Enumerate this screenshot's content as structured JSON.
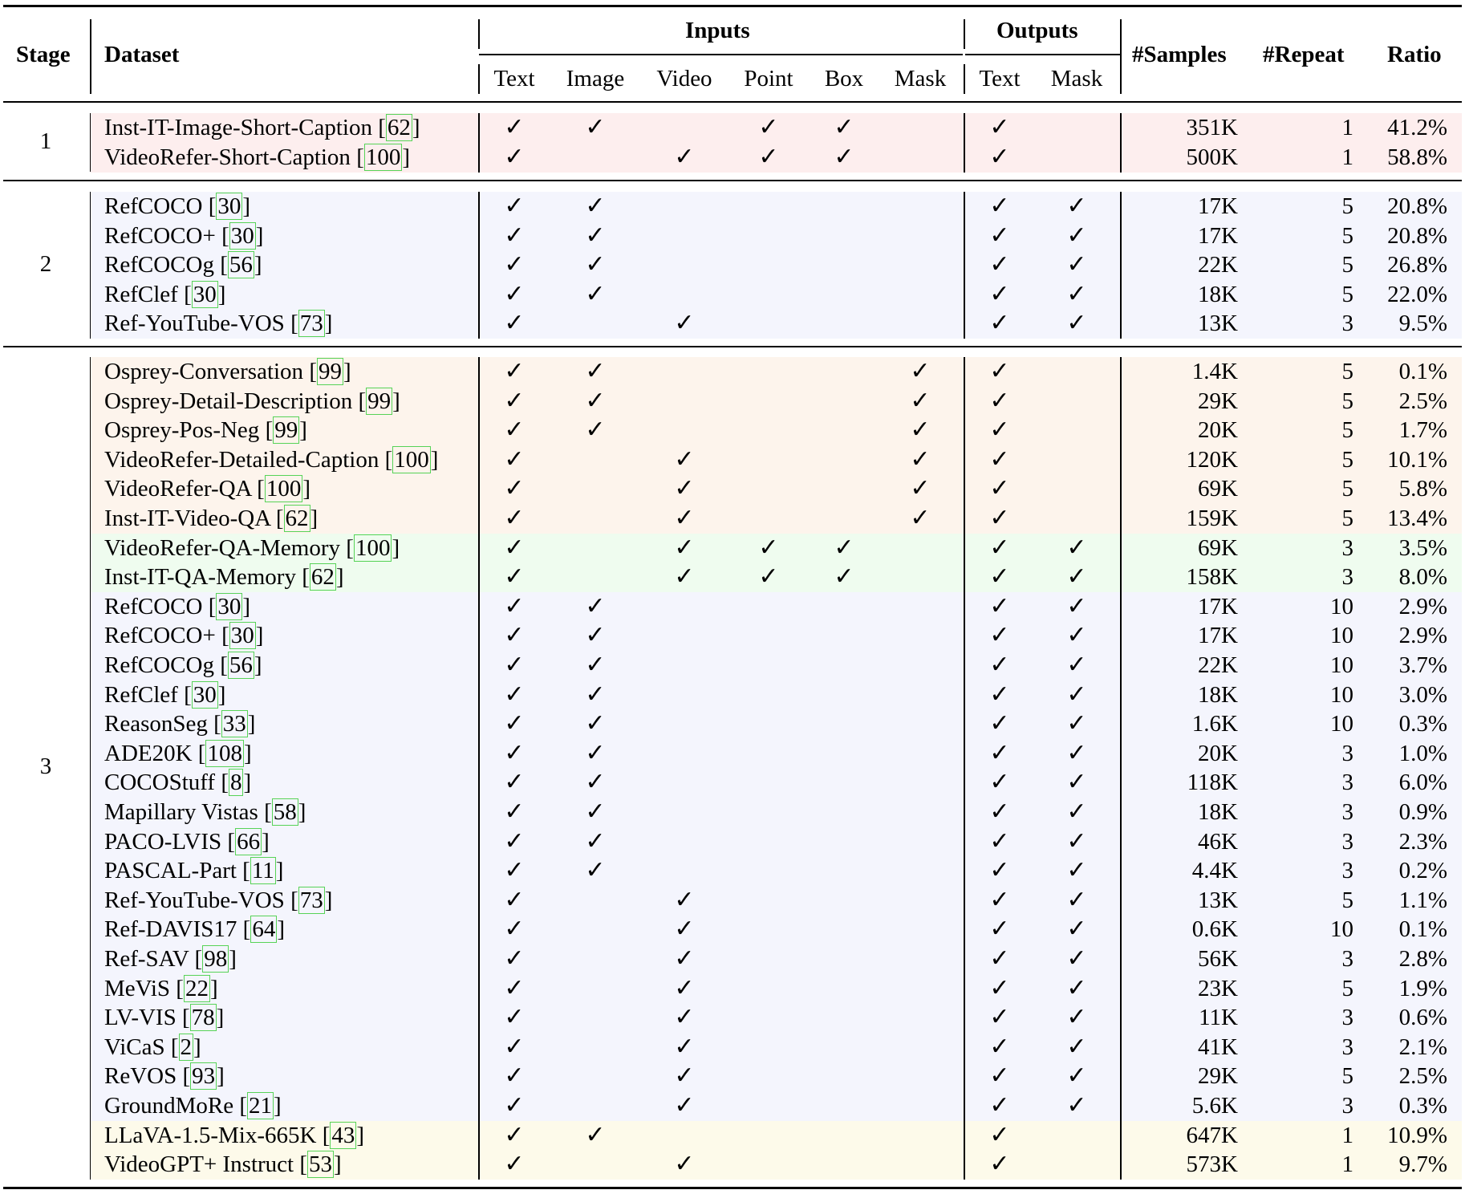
{
  "headers": {
    "stage": "Stage",
    "dataset": "Dataset",
    "inputs": "Inputs",
    "outputs": "Outputs",
    "samples": "#Samples",
    "repeat": "#Repeat",
    "ratio": "Ratio",
    "input_cols": [
      "Text",
      "Image",
      "Video",
      "Point",
      "Box",
      "Mask"
    ],
    "output_cols": [
      "Text",
      "Mask"
    ]
  },
  "check_symbol": "✓",
  "band_colors": {
    "red": "#fdeeee",
    "blue": "#f4f5fd",
    "orange": "#fdf4ec",
    "green": "#effcef",
    "yellow": "#fdfaea"
  },
  "stages": [
    {
      "label": "1",
      "rows": [
        {
          "name": "Inst-IT-Image-Short-Caption",
          "cite": "62",
          "in": [
            1,
            1,
            0,
            1,
            1,
            0
          ],
          "out": [
            1,
            0
          ],
          "samples": "351K",
          "repeat": "1",
          "ratio": "41.2%",
          "band": "red"
        },
        {
          "name": "VideoRefer-Short-Caption",
          "cite": "100",
          "in": [
            1,
            0,
            1,
            1,
            1,
            0
          ],
          "out": [
            1,
            0
          ],
          "samples": "500K",
          "repeat": "1",
          "ratio": "58.8%",
          "band": "red"
        }
      ]
    },
    {
      "label": "2",
      "rows": [
        {
          "name": "RefCOCO",
          "cite": "30",
          "in": [
            1,
            1,
            0,
            0,
            0,
            0
          ],
          "out": [
            1,
            1
          ],
          "samples": "17K",
          "repeat": "5",
          "ratio": "20.8%",
          "band": "blue"
        },
        {
          "name": "RefCOCO+",
          "cite": "30",
          "in": [
            1,
            1,
            0,
            0,
            0,
            0
          ],
          "out": [
            1,
            1
          ],
          "samples": "17K",
          "repeat": "5",
          "ratio": "20.8%",
          "band": "blue"
        },
        {
          "name": "RefCOCOg",
          "cite": "56",
          "in": [
            1,
            1,
            0,
            0,
            0,
            0
          ],
          "out": [
            1,
            1
          ],
          "samples": "22K",
          "repeat": "5",
          "ratio": "26.8%",
          "band": "blue"
        },
        {
          "name": "RefClef",
          "cite": "30",
          "in": [
            1,
            1,
            0,
            0,
            0,
            0
          ],
          "out": [
            1,
            1
          ],
          "samples": "18K",
          "repeat": "5",
          "ratio": "22.0%",
          "band": "blue"
        },
        {
          "name": "Ref-YouTube-VOS",
          "cite": "73",
          "in": [
            1,
            0,
            1,
            0,
            0,
            0
          ],
          "out": [
            1,
            1
          ],
          "samples": "13K",
          "repeat": "3",
          "ratio": "9.5%",
          "band": "blue"
        }
      ]
    },
    {
      "label": "3",
      "rows": [
        {
          "name": "Osprey-Conversation",
          "cite": "99",
          "in": [
            1,
            1,
            0,
            0,
            0,
            1
          ],
          "out": [
            1,
            0
          ],
          "samples": "1.4K",
          "repeat": "5",
          "ratio": "0.1%",
          "band": "orange"
        },
        {
          "name": "Osprey-Detail-Description",
          "cite": "99",
          "in": [
            1,
            1,
            0,
            0,
            0,
            1
          ],
          "out": [
            1,
            0
          ],
          "samples": "29K",
          "repeat": "5",
          "ratio": "2.5%",
          "band": "orange"
        },
        {
          "name": "Osprey-Pos-Neg",
          "cite": "99",
          "in": [
            1,
            1,
            0,
            0,
            0,
            1
          ],
          "out": [
            1,
            0
          ],
          "samples": "20K",
          "repeat": "5",
          "ratio": "1.7%",
          "band": "orange"
        },
        {
          "name": "VideoRefer-Detailed-Caption",
          "cite": "100",
          "in": [
            1,
            0,
            1,
            0,
            0,
            1
          ],
          "out": [
            1,
            0
          ],
          "samples": "120K",
          "repeat": "5",
          "ratio": "10.1%",
          "band": "orange"
        },
        {
          "name": "VideoRefer-QA",
          "cite": "100",
          "in": [
            1,
            0,
            1,
            0,
            0,
            1
          ],
          "out": [
            1,
            0
          ],
          "samples": "69K",
          "repeat": "5",
          "ratio": "5.8%",
          "band": "orange"
        },
        {
          "name": "Inst-IT-Video-QA",
          "cite": "62",
          "in": [
            1,
            0,
            1,
            0,
            0,
            1
          ],
          "out": [
            1,
            0
          ],
          "samples": "159K",
          "repeat": "5",
          "ratio": "13.4%",
          "band": "orange"
        },
        {
          "name": "VideoRefer-QA-Memory",
          "cite": "100",
          "in": [
            1,
            0,
            1,
            1,
            1,
            0
          ],
          "out": [
            1,
            1
          ],
          "samples": "69K",
          "repeat": "3",
          "ratio": "3.5%",
          "band": "green"
        },
        {
          "name": "Inst-IT-QA-Memory",
          "cite": "62",
          "in": [
            1,
            0,
            1,
            1,
            1,
            0
          ],
          "out": [
            1,
            1
          ],
          "samples": "158K",
          "repeat": "3",
          "ratio": "8.0%",
          "band": "green"
        },
        {
          "name": "RefCOCO",
          "cite": "30",
          "in": [
            1,
            1,
            0,
            0,
            0,
            0
          ],
          "out": [
            1,
            1
          ],
          "samples": "17K",
          "repeat": "10",
          "ratio": "2.9%",
          "band": "blue"
        },
        {
          "name": "RefCOCO+",
          "cite": "30",
          "in": [
            1,
            1,
            0,
            0,
            0,
            0
          ],
          "out": [
            1,
            1
          ],
          "samples": "17K",
          "repeat": "10",
          "ratio": "2.9%",
          "band": "blue"
        },
        {
          "name": "RefCOCOg",
          "cite": "56",
          "in": [
            1,
            1,
            0,
            0,
            0,
            0
          ],
          "out": [
            1,
            1
          ],
          "samples": "22K",
          "repeat": "10",
          "ratio": "3.7%",
          "band": "blue"
        },
        {
          "name": "RefClef",
          "cite": "30",
          "in": [
            1,
            1,
            0,
            0,
            0,
            0
          ],
          "out": [
            1,
            1
          ],
          "samples": "18K",
          "repeat": "10",
          "ratio": "3.0%",
          "band": "blue"
        },
        {
          "name": "ReasonSeg",
          "cite": "33",
          "in": [
            1,
            1,
            0,
            0,
            0,
            0
          ],
          "out": [
            1,
            1
          ],
          "samples": "1.6K",
          "repeat": "10",
          "ratio": "0.3%",
          "band": "blue"
        },
        {
          "name": "ADE20K",
          "cite": "108",
          "in": [
            1,
            1,
            0,
            0,
            0,
            0
          ],
          "out": [
            1,
            1
          ],
          "samples": "20K",
          "repeat": "3",
          "ratio": "1.0%",
          "band": "blue"
        },
        {
          "name": "COCOStuff",
          "cite": "8",
          "in": [
            1,
            1,
            0,
            0,
            0,
            0
          ],
          "out": [
            1,
            1
          ],
          "samples": "118K",
          "repeat": "3",
          "ratio": "6.0%",
          "band": "blue"
        },
        {
          "name": "Mapillary Vistas",
          "cite": "58",
          "in": [
            1,
            1,
            0,
            0,
            0,
            0
          ],
          "out": [
            1,
            1
          ],
          "samples": "18K",
          "repeat": "3",
          "ratio": "0.9%",
          "band": "blue"
        },
        {
          "name": "PACO-LVIS",
          "cite": "66",
          "in": [
            1,
            1,
            0,
            0,
            0,
            0
          ],
          "out": [
            1,
            1
          ],
          "samples": "46K",
          "repeat": "3",
          "ratio": "2.3%",
          "band": "blue"
        },
        {
          "name": "PASCAL-Part",
          "cite": "11",
          "in": [
            1,
            1,
            0,
            0,
            0,
            0
          ],
          "out": [
            1,
            1
          ],
          "samples": "4.4K",
          "repeat": "3",
          "ratio": "0.2%",
          "band": "blue"
        },
        {
          "name": "Ref-YouTube-VOS",
          "cite": "73",
          "in": [
            1,
            0,
            1,
            0,
            0,
            0
          ],
          "out": [
            1,
            1
          ],
          "samples": "13K",
          "repeat": "5",
          "ratio": "1.1%",
          "band": "blue"
        },
        {
          "name": "Ref-DAVIS17",
          "cite": "64",
          "in": [
            1,
            0,
            1,
            0,
            0,
            0
          ],
          "out": [
            1,
            1
          ],
          "samples": "0.6K",
          "repeat": "10",
          "ratio": "0.1%",
          "band": "blue"
        },
        {
          "name": "Ref-SAV",
          "cite": "98",
          "in": [
            1,
            0,
            1,
            0,
            0,
            0
          ],
          "out": [
            1,
            1
          ],
          "samples": "56K",
          "repeat": "3",
          "ratio": "2.8%",
          "band": "blue"
        },
        {
          "name": "MeViS",
          "cite": "22",
          "in": [
            1,
            0,
            1,
            0,
            0,
            0
          ],
          "out": [
            1,
            1
          ],
          "samples": "23K",
          "repeat": "5",
          "ratio": "1.9%",
          "band": "blue"
        },
        {
          "name": "LV-VIS",
          "cite": "78",
          "in": [
            1,
            0,
            1,
            0,
            0,
            0
          ],
          "out": [
            1,
            1
          ],
          "samples": "11K",
          "repeat": "3",
          "ratio": "0.6%",
          "band": "blue"
        },
        {
          "name": "ViCaS",
          "cite": "2",
          "in": [
            1,
            0,
            1,
            0,
            0,
            0
          ],
          "out": [
            1,
            1
          ],
          "samples": "41K",
          "repeat": "3",
          "ratio": "2.1%",
          "band": "blue"
        },
        {
          "name": "ReVOS",
          "cite": "93",
          "in": [
            1,
            0,
            1,
            0,
            0,
            0
          ],
          "out": [
            1,
            1
          ],
          "samples": "29K",
          "repeat": "5",
          "ratio": "2.5%",
          "band": "blue"
        },
        {
          "name": "GroundMoRe",
          "cite": "21",
          "in": [
            1,
            0,
            1,
            0,
            0,
            0
          ],
          "out": [
            1,
            1
          ],
          "samples": "5.6K",
          "repeat": "3",
          "ratio": "0.3%",
          "band": "blue"
        },
        {
          "name": "LLaVA-1.5-Mix-665K",
          "cite": "43",
          "in": [
            1,
            1,
            0,
            0,
            0,
            0
          ],
          "out": [
            1,
            0
          ],
          "samples": "647K",
          "repeat": "1",
          "ratio": "10.9%",
          "band": "yellow"
        },
        {
          "name": "VideoGPT+ Instruct",
          "cite": "53",
          "in": [
            1,
            0,
            1,
            0,
            0,
            0
          ],
          "out": [
            1,
            0
          ],
          "samples": "573K",
          "repeat": "1",
          "ratio": "9.7%",
          "band": "yellow"
        }
      ]
    }
  ]
}
